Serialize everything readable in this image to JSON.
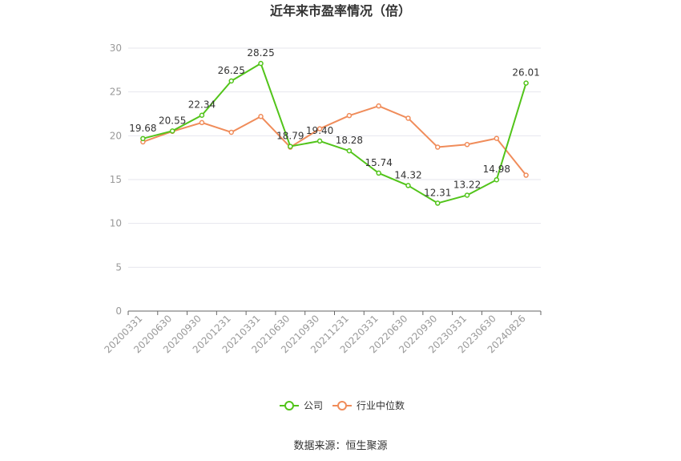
{
  "chart_data": {
    "type": "line",
    "title": "近年来市盈率情况（倍）",
    "categories": [
      "20200331",
      "20200630",
      "20200930",
      "20201231",
      "20210331",
      "20210630",
      "20210930",
      "20211231",
      "20220331",
      "20220630",
      "20220930",
      "20230331",
      "20230630",
      "20240826"
    ],
    "ylim": [
      0,
      30
    ],
    "yticks": [
      0,
      5,
      10,
      15,
      20,
      25,
      30
    ],
    "grid": true,
    "legend_position": "bottom",
    "series": [
      {
        "name": "公司",
        "color": "#52c41a",
        "values": [
          19.68,
          20.55,
          22.34,
          26.25,
          28.25,
          18.79,
          19.4,
          18.28,
          15.74,
          14.32,
          12.31,
          13.22,
          14.98,
          26.01
        ],
        "labels": [
          "19.68",
          "20.55",
          "22.34",
          "26.25",
          "28.25",
          "18.79",
          "19.40",
          "18.28",
          "15.74",
          "14.32",
          "12.31",
          "13.22",
          "14.98",
          "26.01"
        ]
      },
      {
        "name": "行业中位数",
        "color": "#f08c5a",
        "values": [
          19.3,
          20.5,
          21.5,
          20.4,
          22.2,
          18.7,
          20.8,
          22.3,
          23.4,
          22.0,
          18.7,
          19.0,
          19.7,
          15.5
        ]
      }
    ],
    "source": "数据来源：恒生聚源"
  }
}
